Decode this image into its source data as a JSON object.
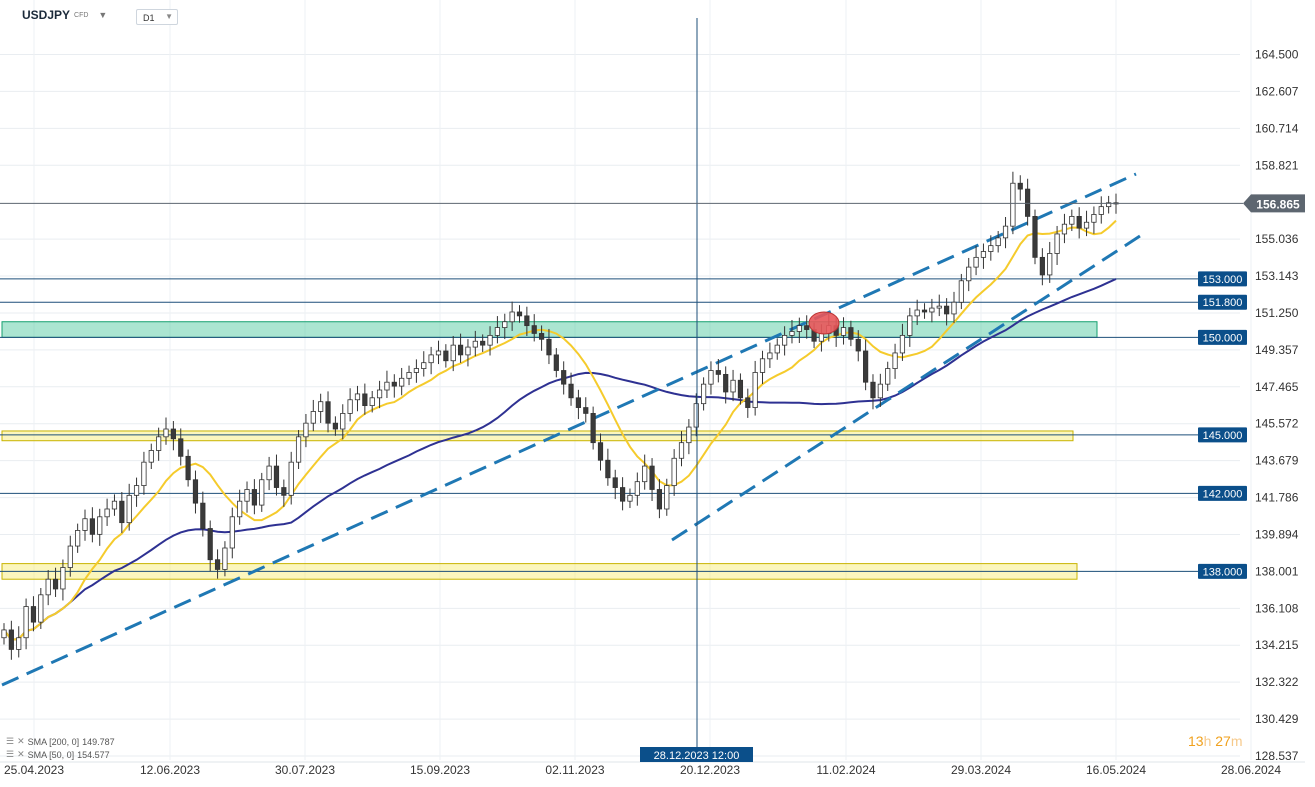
{
  "header": {
    "symbol": "USDJPY",
    "symbol_sub": "CFD",
    "timeframe": "D1"
  },
  "current_price": "156.865",
  "crosshair_date": "28.12.2023 12:00",
  "timer": {
    "h": "13",
    "h_unit": "h",
    "m": "27",
    "m_unit": "m"
  },
  "indicators": [
    {
      "label": "SMA [200, 0]",
      "value": "149.787",
      "color": "#2e3192"
    },
    {
      "label": "SMA [50, 0]",
      "value": "154.577",
      "color": "#f5cb2c"
    }
  ],
  "colors": {
    "up_candle": "#ffffff",
    "down_candle": "#3a3a3a",
    "trend_line": "#1f78b4",
    "level_line": "#1d4f7a",
    "level_label_bg": "#0b4f8a",
    "zone_green": "#45c59a",
    "zone_yellow": "#f7ea6c",
    "price_tag": "#5d6670"
  },
  "chart_data": {
    "type": "candlestick",
    "x_dates": [
      "25.04.2023",
      "28.06.2024"
    ],
    "ylim": [
      128.537,
      166.4
    ],
    "y_ticks": [
      "164.500",
      "162.607",
      "160.714",
      "158.821",
      "155.036",
      "153.143",
      "151.250",
      "149.357",
      "147.465",
      "145.572",
      "143.679",
      "141.786",
      "139.894",
      "138.001",
      "136.108",
      "134.215",
      "132.322",
      "130.429",
      "128.537"
    ],
    "x_ticks": [
      "25.04.2023",
      "12.06.2023",
      "30.07.2023",
      "15.09.2023",
      "02.11.2023",
      "20.12.2023",
      "11.02.2024",
      "29.03.2024",
      "16.05.2024",
      "28.06.2024"
    ],
    "levels": [
      {
        "label": "153.000",
        "value": 153.0
      },
      {
        "label": "151.800",
        "value": 151.8
      },
      {
        "label": "150.000",
        "value": 150.0
      },
      {
        "label": "145.000",
        "value": 145.0
      },
      {
        "label": "142.000",
        "value": 142.0
      },
      {
        "label": "138.000",
        "value": 138.0
      }
    ],
    "zones": [
      {
        "name": "green-zone",
        "from": 150.0,
        "to": 150.8,
        "color": "#45c59a"
      },
      {
        "name": "yellow-zone-145",
        "from": 144.7,
        "to": 145.2,
        "color": "#f7ea6c"
      },
      {
        "name": "yellow-zone-138",
        "from": 137.6,
        "to": 138.4,
        "color": "#f7ea6c"
      }
    ],
    "closes": [
      135,
      134,
      134.6,
      136.2,
      135.4,
      136.8,
      137.6,
      137.1,
      138.2,
      139.3,
      140.1,
      140.7,
      139.9,
      140.8,
      141.2,
      141.6,
      140.5,
      141.9,
      142.4,
      143.6,
      144.2,
      144.9,
      145.3,
      144.8,
      143.9,
      142.7,
      141.5,
      140.2,
      138.6,
      138.1,
      139.2,
      140.8,
      141.6,
      142.2,
      141.4,
      142.7,
      143.4,
      142.3,
      141.9,
      143.6,
      144.9,
      145.6,
      146.2,
      146.7,
      145.6,
      145.3,
      146.1,
      146.8,
      147.1,
      146.5,
      146.9,
      147.3,
      147.7,
      147.5,
      147.9,
      148.2,
      148.4,
      148.7,
      149.1,
      149.3,
      148.8,
      149.6,
      149.1,
      149.5,
      149.8,
      149.6,
      150.1,
      150.5,
      150.8,
      151.3,
      151.1,
      150.6,
      150.2,
      149.9,
      149.1,
      148.3,
      147.6,
      146.9,
      146.4,
      146.1,
      144.6,
      143.7,
      142.8,
      142.3,
      141.6,
      141.9,
      142.6,
      143.4,
      142.2,
      141.2,
      142.4,
      143.8,
      144.6,
      145.4,
      146.6,
      147.6,
      148.3,
      148.1,
      147.2,
      147.8,
      146.9,
      146.4,
      148.2,
      148.9,
      149.2,
      149.6,
      150.1,
      150.3,
      150.6,
      150.4,
      149.8,
      150.2,
      150.6,
      150.1,
      150.5,
      149.9,
      149.3,
      147.7,
      146.9,
      147.6,
      148.4,
      149.2,
      150.1,
      151.1,
      151.4,
      151.3,
      151.5,
      151.6,
      151.2,
      151.8,
      152.9,
      153.6,
      154.1,
      154.4,
      154.7,
      155.1,
      155.7,
      157.9,
      157.6,
      156.2,
      154.1,
      153.2,
      154.3,
      155.3,
      155.8,
      156.2,
      155.6,
      155.9,
      156.3,
      156.7,
      156.9,
      156.865
    ],
    "sma200_label": "SMA [200, 0]",
    "sma200_value": 149.787,
    "sma50_label": "SMA [50, 0]",
    "sma50_value": 154.577
  }
}
